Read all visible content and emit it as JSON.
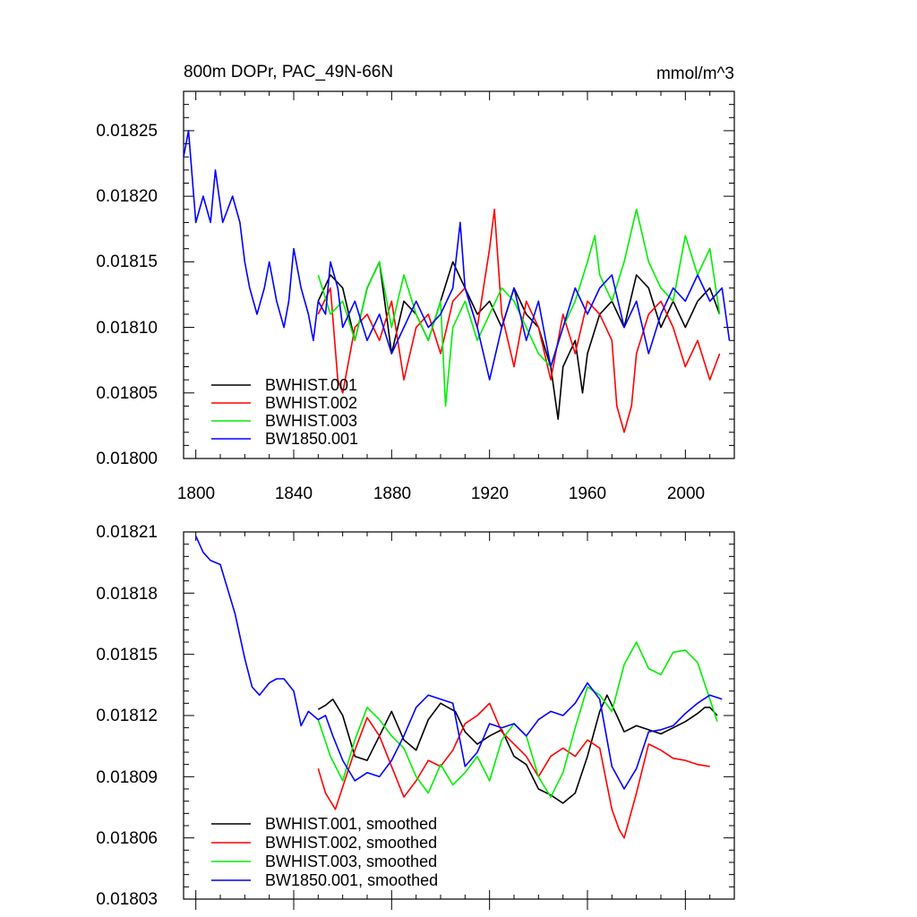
{
  "chart_data": [
    {
      "type": "line",
      "title": "800m DOPr, PAC_49N-66N",
      "units": "mmol/m^3",
      "xlim": [
        1795,
        2020
      ],
      "ylim": [
        0.018,
        0.01828
      ],
      "xticks": [
        1800,
        1840,
        1880,
        1920,
        1960,
        2000
      ],
      "xtick_labels": [
        "1800",
        "1840",
        "1880",
        "1920",
        "1960",
        "2000"
      ],
      "yticks": [
        0.018,
        0.01805,
        0.0181,
        0.01815,
        0.0182,
        0.01825
      ],
      "ytick_labels": [
        "0.01800",
        "0.01805",
        "0.01810",
        "0.01815",
        "0.01820",
        "0.01825"
      ],
      "legend": "bottom-left",
      "grid": false,
      "series": [
        {
          "name": "BWHIST.001",
          "color": "#000000",
          "x": [
            1850,
            1855,
            1860,
            1865,
            1870,
            1875,
            1880,
            1885,
            1890,
            1895,
            1900,
            1905,
            1910,
            1915,
            1920,
            1925,
            1930,
            1935,
            1940,
            1945,
            1948,
            1950,
            1955,
            1958,
            1960,
            1965,
            1970,
            1975,
            1980,
            1985,
            1990,
            1995,
            2000,
            2005,
            2010,
            2014
          ],
          "y": [
            0.01812,
            0.01814,
            0.01813,
            0.01809,
            0.01813,
            0.01815,
            0.01808,
            0.01812,
            0.01811,
            0.01809,
            0.01812,
            0.01815,
            0.01813,
            0.01811,
            0.01812,
            0.0181,
            0.01813,
            0.01811,
            0.0181,
            0.01807,
            0.01803,
            0.01807,
            0.01809,
            0.01805,
            0.01808,
            0.01811,
            0.01812,
            0.0181,
            0.01814,
            0.01813,
            0.0181,
            0.01812,
            0.0181,
            0.01812,
            0.01813,
            0.01811
          ]
        },
        {
          "name": "BWHIST.002",
          "color": "#ff0000",
          "x": [
            1850,
            1855,
            1858,
            1860,
            1865,
            1870,
            1875,
            1880,
            1885,
            1890,
            1895,
            1900,
            1905,
            1910,
            1915,
            1920,
            1922,
            1925,
            1930,
            1935,
            1940,
            1945,
            1950,
            1955,
            1960,
            1965,
            1970,
            1972,
            1975,
            1978,
            1980,
            1985,
            1990,
            1995,
            2000,
            2005,
            2010,
            2014
          ],
          "y": [
            0.01811,
            0.01813,
            0.01806,
            0.01805,
            0.0181,
            0.01811,
            0.01809,
            0.01812,
            0.01806,
            0.0181,
            0.01811,
            0.01808,
            0.01812,
            0.01813,
            0.0181,
            0.01816,
            0.01819,
            0.01811,
            0.01807,
            0.01812,
            0.0181,
            0.01806,
            0.01811,
            0.01808,
            0.01812,
            0.01811,
            0.01809,
            0.01804,
            0.01802,
            0.01804,
            0.01808,
            0.01811,
            0.01812,
            0.0181,
            0.01807,
            0.01809,
            0.01806,
            0.01808
          ]
        },
        {
          "name": "BWHIST.003",
          "color": "#00ee00",
          "x": [
            1850,
            1855,
            1860,
            1865,
            1870,
            1875,
            1880,
            1885,
            1890,
            1895,
            1900,
            1902,
            1905,
            1910,
            1915,
            1920,
            1925,
            1930,
            1935,
            1940,
            1945,
            1950,
            1955,
            1960,
            1963,
            1965,
            1970,
            1975,
            1980,
            1985,
            1990,
            1995,
            2000,
            2005,
            2010,
            2014
          ],
          "y": [
            0.01814,
            0.01811,
            0.01812,
            0.01809,
            0.01813,
            0.01815,
            0.0181,
            0.01814,
            0.01811,
            0.01809,
            0.01812,
            0.01804,
            0.0181,
            0.01812,
            0.01809,
            0.01811,
            0.01813,
            0.01812,
            0.0181,
            0.01808,
            0.01807,
            0.0181,
            0.01812,
            0.01815,
            0.01817,
            0.01814,
            0.01812,
            0.01815,
            0.01819,
            0.01815,
            0.01813,
            0.01812,
            0.01817,
            0.01814,
            0.01816,
            0.01811
          ]
        },
        {
          "name": "BW1850.001",
          "color": "#0000ff",
          "x": [
            1795,
            1797,
            1800,
            1803,
            1806,
            1808,
            1811,
            1813,
            1815,
            1818,
            1820,
            1822,
            1825,
            1828,
            1830,
            1833,
            1836,
            1838,
            1840,
            1843,
            1846,
            1848,
            1850,
            1853,
            1855,
            1858,
            1860,
            1865,
            1870,
            1875,
            1880,
            1885,
            1890,
            1895,
            1900,
            1905,
            1908,
            1910,
            1915,
            1920,
            1925,
            1930,
            1935,
            1940,
            1945,
            1950,
            1955,
            1960,
            1965,
            1970,
            1975,
            1980,
            1985,
            1990,
            1995,
            2000,
            2005,
            2010,
            2015,
            2018
          ],
          "y": [
            0.01823,
            0.01825,
            0.01818,
            0.0182,
            0.01818,
            0.01822,
            0.01818,
            0.01819,
            0.0182,
            0.01818,
            0.01815,
            0.01813,
            0.01811,
            0.01813,
            0.01815,
            0.01812,
            0.0181,
            0.01812,
            0.01816,
            0.01813,
            0.01811,
            0.01809,
            0.01812,
            0.01811,
            0.01815,
            0.01813,
            0.0181,
            0.01812,
            0.01809,
            0.01811,
            0.01808,
            0.0181,
            0.01812,
            0.0181,
            0.01811,
            0.01813,
            0.01818,
            0.01813,
            0.0181,
            0.01806,
            0.0181,
            0.01813,
            0.01809,
            0.01812,
            0.01807,
            0.0181,
            0.01813,
            0.01811,
            0.01813,
            0.01814,
            0.0181,
            0.01812,
            0.01808,
            0.01811,
            0.01813,
            0.01812,
            0.01814,
            0.01812,
            0.01813,
            0.01809
          ]
        }
      ]
    },
    {
      "type": "line",
      "xlim": [
        1795,
        2020
      ],
      "ylim": [
        0.01803,
        0.01821
      ],
      "xticks": [
        1800,
        1840,
        1880,
        1920,
        1960,
        2000
      ],
      "yticks": [
        0.01803,
        0.01806,
        0.01809,
        0.01812,
        0.01815,
        0.01818,
        0.01821
      ],
      "ytick_labels": [
        "0.01803",
        "0.01806",
        "0.01809",
        "0.01812",
        "0.01815",
        "0.01818",
        "0.01821"
      ],
      "legend": "bottom-left",
      "grid": false,
      "series": [
        {
          "name": "BWHIST.001, smoothed",
          "color": "#000000",
          "x": [
            1850,
            1853,
            1856,
            1860,
            1865,
            1870,
            1875,
            1880,
            1885,
            1890,
            1895,
            1900,
            1903,
            1906,
            1910,
            1915,
            1920,
            1925,
            1930,
            1935,
            1940,
            1945,
            1950,
            1955,
            1960,
            1965,
            1968,
            1972,
            1975,
            1980,
            1985,
            1990,
            1995,
            2000,
            2005,
            2008,
            2010,
            2013
          ],
          "y": [
            0.018123,
            0.018125,
            0.018128,
            0.01812,
            0.0181,
            0.018098,
            0.01811,
            0.018122,
            0.018108,
            0.018103,
            0.018118,
            0.018126,
            0.018124,
            0.018122,
            0.018112,
            0.018106,
            0.01811,
            0.018113,
            0.0181,
            0.018096,
            0.018084,
            0.018081,
            0.018077,
            0.018082,
            0.0181,
            0.018122,
            0.01813,
            0.01812,
            0.018112,
            0.018115,
            0.018113,
            0.018111,
            0.018114,
            0.018117,
            0.018121,
            0.018124,
            0.018124,
            0.01812
          ]
        },
        {
          "name": "BWHIST.002, smoothed",
          "color": "#ff0000",
          "x": [
            1850,
            1853,
            1857,
            1860,
            1865,
            1870,
            1875,
            1880,
            1885,
            1890,
            1895,
            1900,
            1905,
            1910,
            1915,
            1920,
            1925,
            1930,
            1935,
            1940,
            1945,
            1950,
            1955,
            1960,
            1965,
            1970,
            1973,
            1975,
            1980,
            1985,
            1990,
            1995,
            2000,
            2005,
            2010
          ],
          "y": [
            0.018094,
            0.018082,
            0.018074,
            0.018085,
            0.018103,
            0.018119,
            0.01811,
            0.018095,
            0.01808,
            0.018088,
            0.018098,
            0.018095,
            0.018103,
            0.018116,
            0.01812,
            0.018126,
            0.018112,
            0.018106,
            0.0181,
            0.01809,
            0.0181,
            0.018104,
            0.0181,
            0.018108,
            0.018104,
            0.018074,
            0.018064,
            0.01806,
            0.018082,
            0.018106,
            0.018103,
            0.018099,
            0.018098,
            0.018096,
            0.018095
          ]
        },
        {
          "name": "BWHIST.003, smoothed",
          "color": "#00ee00",
          "x": [
            1850,
            1855,
            1860,
            1865,
            1870,
            1875,
            1880,
            1885,
            1890,
            1895,
            1900,
            1905,
            1910,
            1915,
            1920,
            1925,
            1930,
            1935,
            1940,
            1945,
            1950,
            1955,
            1960,
            1965,
            1970,
            1975,
            1980,
            1985,
            1990,
            1995,
            2000,
            2005,
            2010,
            2013
          ],
          "y": [
            0.018118,
            0.0181,
            0.018088,
            0.018108,
            0.018124,
            0.018118,
            0.01811,
            0.018104,
            0.01809,
            0.018082,
            0.018096,
            0.018086,
            0.018092,
            0.0181,
            0.018088,
            0.018108,
            0.018116,
            0.01811,
            0.01809,
            0.01808,
            0.018092,
            0.018114,
            0.018134,
            0.01813,
            0.018122,
            0.018145,
            0.018156,
            0.018143,
            0.01814,
            0.018151,
            0.018152,
            0.018146,
            0.018128,
            0.018117
          ]
        },
        {
          "name": "BW1850.001, smoothed",
          "color": "#0000ff",
          "x": [
            1800,
            1803,
            1806,
            1810,
            1813,
            1816,
            1820,
            1823,
            1826,
            1830,
            1833,
            1836,
            1840,
            1843,
            1846,
            1850,
            1853,
            1856,
            1860,
            1865,
            1870,
            1875,
            1880,
            1885,
            1890,
            1895,
            1900,
            1905,
            1910,
            1915,
            1920,
            1925,
            1930,
            1935,
            1940,
            1945,
            1950,
            1955,
            1960,
            1965,
            1970,
            1975,
            1980,
            1985,
            1990,
            1995,
            2000,
            2005,
            2010,
            2015
          ],
          "y": [
            0.018208,
            0.0182,
            0.018196,
            0.018194,
            0.018182,
            0.01817,
            0.018148,
            0.018134,
            0.01813,
            0.018136,
            0.018138,
            0.018138,
            0.018132,
            0.018115,
            0.018122,
            0.018118,
            0.01812,
            0.01811,
            0.018098,
            0.018088,
            0.018092,
            0.01809,
            0.018098,
            0.01811,
            0.018124,
            0.01813,
            0.018128,
            0.018126,
            0.018095,
            0.018102,
            0.018116,
            0.018114,
            0.018116,
            0.01811,
            0.018118,
            0.018122,
            0.01812,
            0.018126,
            0.018136,
            0.018128,
            0.018095,
            0.018084,
            0.018094,
            0.018112,
            0.018113,
            0.018115,
            0.018121,
            0.018126,
            0.01813,
            0.018128
          ]
        }
      ]
    }
  ]
}
